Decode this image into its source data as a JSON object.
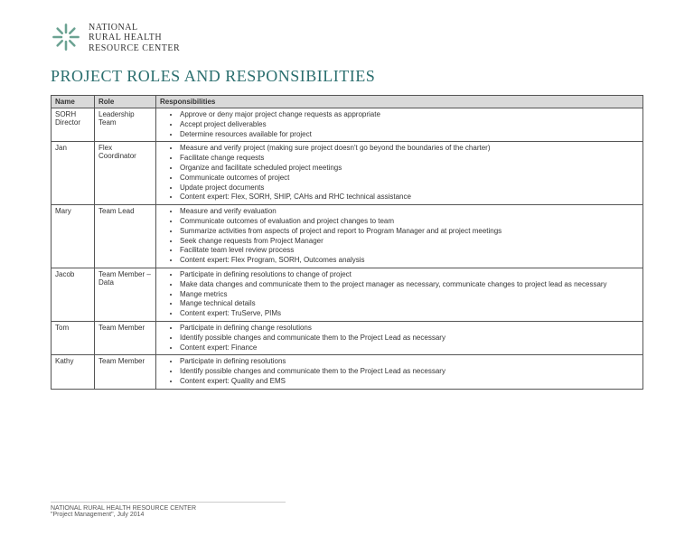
{
  "org": {
    "line1": "NATIONAL",
    "line2": "RURAL HEALTH",
    "line3": "RESOURCE CENTER"
  },
  "page_title": "PROJECT ROLES AND RESPONSIBILITIES",
  "title_color": "#2a6e6e",
  "columns": [
    "Name",
    "Role",
    "Responsibilities"
  ],
  "rows": [
    {
      "name": "SORH Director",
      "role": "Leadership Team",
      "items": [
        "Approve or deny major project change requests as appropriate",
        "Accept project deliverables",
        "Determine resources available for project"
      ]
    },
    {
      "name": "Jan",
      "role": "Flex Coordinator",
      "items": [
        "Measure and verify project (making sure project doesn't go beyond the boundaries of the charter)",
        "Facilitate change requests",
        "Organize and facilitate scheduled project meetings",
        "Communicate outcomes of project",
        "Update project documents",
        "Content expert: Flex, SORH, SHIP, CAHs and RHC technical assistance"
      ]
    },
    {
      "name": "Mary",
      "role": "Team Lead",
      "items": [
        "Measure and verify evaluation",
        "Communicate outcomes of evaluation and project changes to team",
        "Summarize activities from aspects of project and report to Program Manager and at project meetings",
        "Seek change requests from Project Manager",
        "Facilitate team level review process",
        "Content expert: Flex Program, SORH, Outcomes analysis"
      ]
    },
    {
      "name": "Jacob",
      "role": "Team Member – Data",
      "items": [
        "Participate in defining resolutions to change of project",
        "Make data changes and communicate them to the project manager as necessary, communicate changes to project lead as necessary",
        "Mange metrics",
        "Mange technical details",
        "Content expert: TruServe, PIMs"
      ]
    },
    {
      "name": "Tom",
      "role": "Team Member",
      "items": [
        "Participate in defining change resolutions",
        "Identify possible changes and communicate them to the Project Lead as necessary",
        "Content expert: Finance"
      ]
    },
    {
      "name": "Kathy",
      "role": "Team Member",
      "items": [
        "Participate in defining resolutions",
        "Identify possible changes and communicate them to the Project Lead as necessary",
        "Content expert: Quality and EMS"
      ]
    }
  ],
  "footer": {
    "line1": "NATIONAL RURAL HEALTH RESOURCE CENTER",
    "line2": "\"Project Management\", July 2014"
  },
  "logo_colors": {
    "stroke": "#6ba292"
  }
}
